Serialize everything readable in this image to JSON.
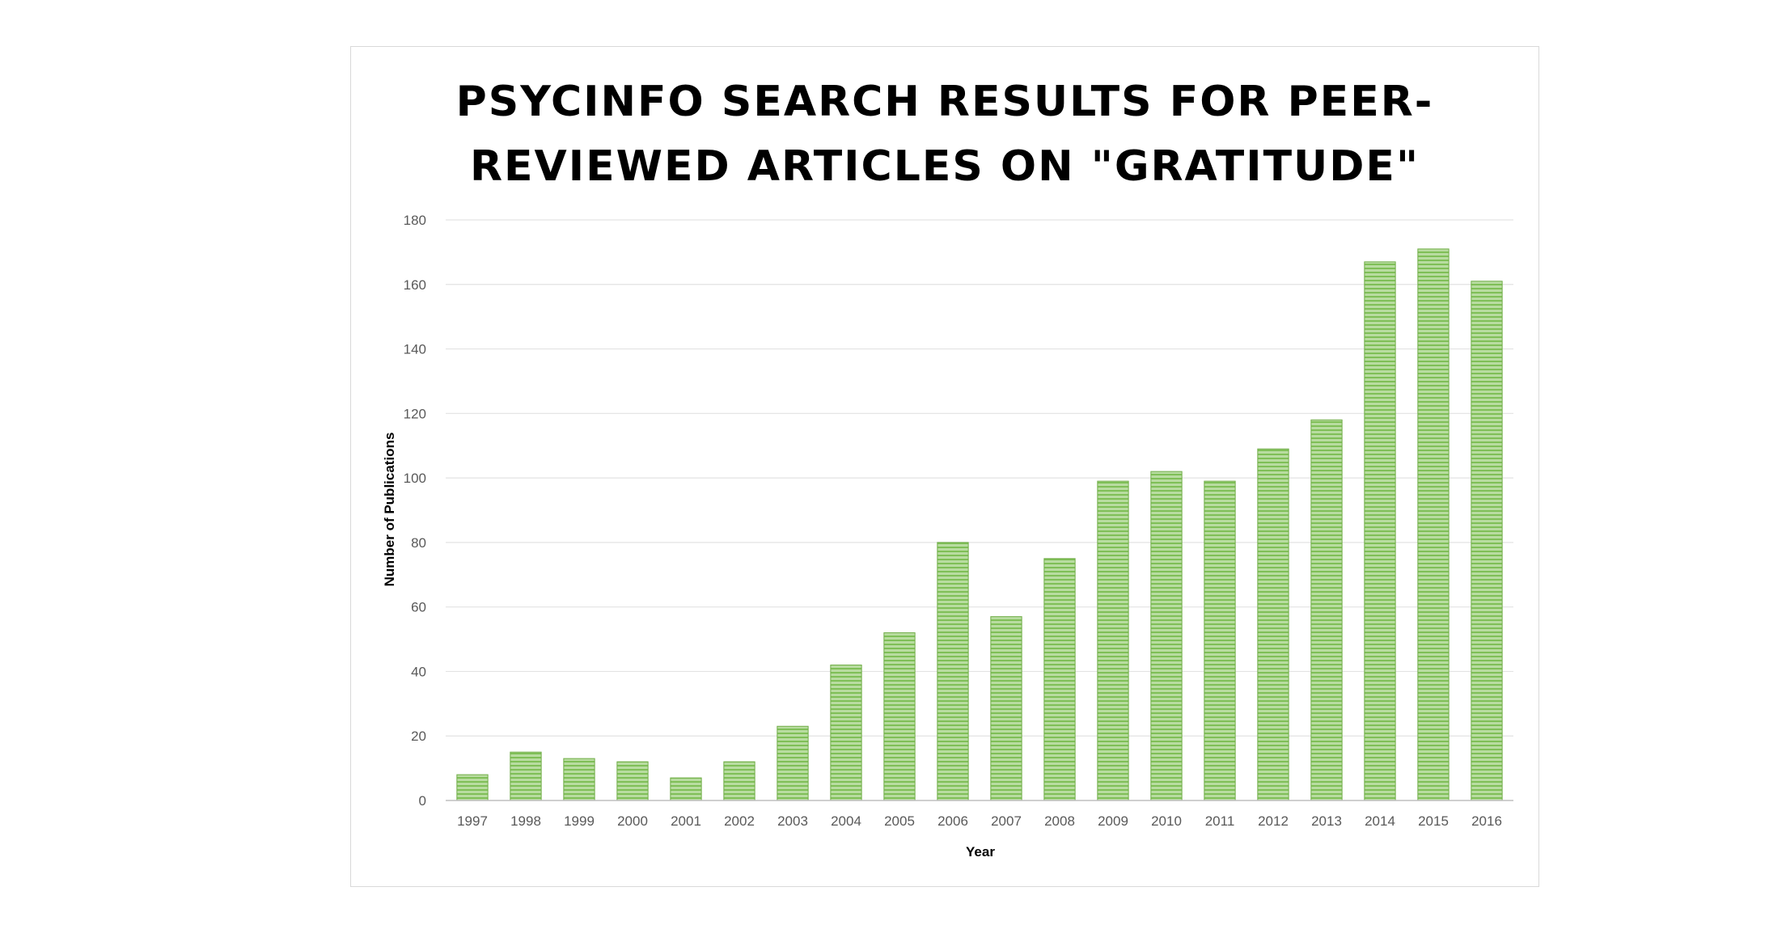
{
  "chart_data": {
    "type": "bar",
    "title_lines": [
      "PSYCINFO SEARCH RESULTS FOR PEER-",
      "REVIEWED ARTICLES ON \"GRATITUDE\""
    ],
    "xlabel": "Year",
    "ylabel": "Number of Publications",
    "categories": [
      "1997",
      "1998",
      "1999",
      "2000",
      "2001",
      "2002",
      "2003",
      "2004",
      "2005",
      "2006",
      "2007",
      "2008",
      "2009",
      "2010",
      "2011",
      "2012",
      "2013",
      "2014",
      "2015",
      "2016"
    ],
    "values": [
      8,
      15,
      13,
      12,
      7,
      12,
      23,
      42,
      52,
      80,
      57,
      75,
      99,
      102,
      99,
      109,
      118,
      167,
      171,
      161
    ],
    "ylim": [
      0,
      180
    ],
    "yticks": [
      0,
      20,
      40,
      60,
      80,
      100,
      120,
      140,
      160,
      180
    ],
    "grid": true,
    "legend": "none",
    "colors": {
      "bar_fill": "#a9d08e",
      "bar_stripe": "#70ad47",
      "gridline": "#e3e3e3",
      "axis": "#bfbfbf",
      "tick_text": "#595959"
    }
  }
}
